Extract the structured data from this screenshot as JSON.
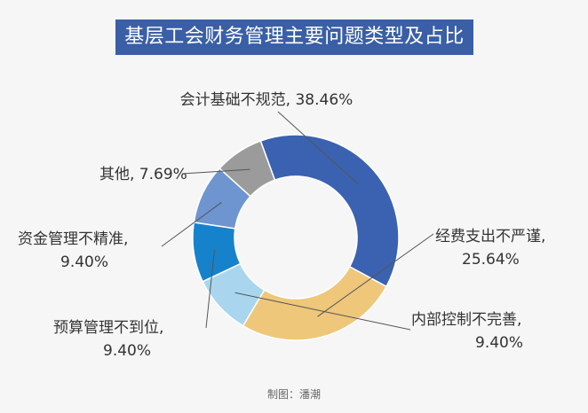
{
  "title": "基层工会财务管理主要问题类型及占比",
  "credit": "制图：潘潮",
  "chart_data": {
    "type": "pie",
    "donut": true,
    "categories": [
      "会计基础不规范",
      "经费支出不严谨",
      "内部控制不完善",
      "预算管理不到位",
      "资金管理不精准",
      "其他"
    ],
    "values": [
      38.46,
      25.64,
      9.4,
      9.4,
      9.4,
      7.69
    ],
    "colors": [
      "#3a62b0",
      "#eec77a",
      "#a9d6ee",
      "#1782cc",
      "#6e95cf",
      "#9b9b9b"
    ],
    "labels": [
      [
        "会计基础不规范, 38.46%"
      ],
      [
        "经费支出不严谨,",
        "25.64%"
      ],
      [
        "内部控制不完善,",
        "9.40%"
      ],
      [
        "预算管理不到位,",
        "9.40%"
      ],
      [
        "资金管理不精准,",
        "9.40%"
      ],
      [
        "其他, 7.69%"
      ]
    ]
  }
}
